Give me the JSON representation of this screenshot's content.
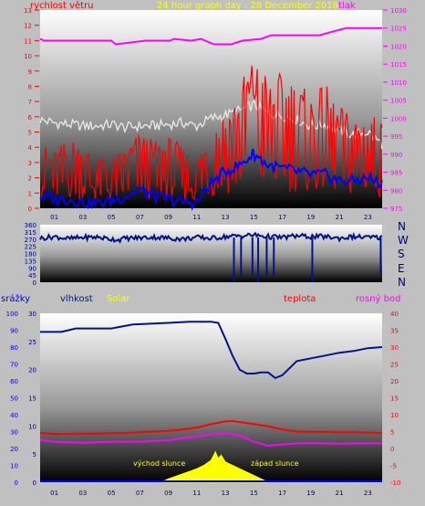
{
  "header": {
    "left_label": "rychlost větru",
    "title": "24 hour graph day : 28 December 2018",
    "right_label": "tlak"
  },
  "colors": {
    "background": "#c0c0c0",
    "wind": "#ff0000",
    "gust": "#e6e6e6",
    "direction": "#00148c",
    "pressure": "#ff00ff",
    "humidity": "#00148c",
    "solar": "#ffff00",
    "temperature": "#ff0000",
    "dewpoint": "#ff00ff",
    "rain": "#0000ff",
    "time_ticks": "#000080"
  },
  "compass": [
    "N",
    "W",
    "S",
    "E",
    "N"
  ],
  "panel3_labels": {
    "rain": "srážky",
    "humidity": "vlhkost",
    "solar": "Solar",
    "temperature": "teplota",
    "dewpoint": "rosný bod",
    "sunrise": "východ slunce",
    "sunset": "západ slunce"
  },
  "chart_data": [
    {
      "type": "line",
      "name": "wind_and_pressure",
      "x_ticks": [
        "01",
        "03",
        "05",
        "07",
        "09",
        "11",
        "13",
        "15",
        "17",
        "19",
        "21",
        "23"
      ],
      "xlim": [
        0,
        24
      ],
      "y_left_ticks": [
        "0",
        "1",
        "2",
        "3",
        "4",
        "5",
        "6",
        "7",
        "8",
        "9",
        "10",
        "11",
        "12",
        "13"
      ],
      "y_left_label": "rychlost větru",
      "ylim_left": [
        0,
        13
      ],
      "y_right_ticks": [
        "975",
        "980",
        "985",
        "990",
        "995",
        "1000",
        "1005",
        "1010",
        "1015",
        "1020",
        "1025",
        "1030"
      ],
      "y_right_label": "tlak",
      "ylim_right": [
        975,
        1030
      ],
      "series": [
        {
          "key": "pressure",
          "axis": "right",
          "x": [
            0,
            0.3,
            5,
            5.3,
            7.4,
            9.1,
            9.4,
            10.6,
            11.3,
            12.2,
            13.4,
            14.2,
            15.5,
            16.2,
            19.6,
            20.5,
            21.5,
            24
          ],
          "y": [
            1022,
            1021.5,
            1021.5,
            1020.5,
            1021.5,
            1021.5,
            1022,
            1021.5,
            1022,
            1020.5,
            1020.5,
            1021.5,
            1022,
            1023,
            1023,
            1024,
            1025,
            1025
          ]
        },
        {
          "key": "gust",
          "axis": "left",
          "x": [
            0,
            1,
            2,
            3,
            4,
            5,
            6,
            7,
            8,
            9,
            10,
            11,
            12,
            13,
            14,
            15,
            16,
            17,
            18,
            19,
            20,
            21,
            22,
            23,
            24
          ],
          "y": [
            5.8,
            5.6,
            5.5,
            5.4,
            5.4,
            5.5,
            5.3,
            5.4,
            5.4,
            5.5,
            5.6,
            5.4,
            5.9,
            6.1,
            6.4,
            6.8,
            6.2,
            6.1,
            5.8,
            5.4,
            5.5,
            5.1,
            4.8,
            5.0,
            4.2
          ]
        },
        {
          "key": "wind",
          "axis": "left",
          "x": [
            0,
            1,
            2,
            3,
            4,
            5,
            6,
            7,
            8,
            9,
            10,
            11,
            12,
            13,
            14,
            15,
            16,
            17,
            18,
            19,
            20,
            21,
            22,
            23,
            24
          ],
          "y": [
            2.6,
            2.2,
            2.8,
            2.5,
            2.0,
            1.9,
            2.4,
            3.0,
            2.6,
            2.8,
            2.4,
            2.0,
            3.2,
            4.0,
            4.6,
            6.8,
            5.0,
            5.3,
            5.0,
            4.4,
            4.8,
            4.0,
            3.6,
            3.8,
            3.4
          ]
        },
        {
          "key": "wind_avg",
          "axis": "left",
          "x": [
            0,
            1,
            2,
            3,
            4,
            5,
            6,
            7,
            8,
            9,
            10,
            11,
            12,
            13,
            14,
            15,
            16,
            17,
            18,
            19,
            20,
            21,
            22,
            23,
            24
          ],
          "y": [
            0.8,
            0.6,
            0.6,
            0.4,
            0.3,
            0.5,
            0.8,
            1.2,
            0.8,
            0.6,
            0.4,
            0.4,
            1.6,
            2.4,
            2.8,
            3.6,
            2.8,
            2.6,
            2.4,
            2.2,
            2.2,
            1.8,
            1.8,
            2.0,
            1.6
          ]
        }
      ]
    },
    {
      "type": "line",
      "name": "wind_direction",
      "xlim": [
        0,
        24
      ],
      "y_ticks": [
        "360",
        "315",
        "270",
        "225",
        "180",
        "135",
        "90",
        "45",
        "0"
      ],
      "ylim": [
        0,
        360
      ],
      "series": [
        {
          "key": "direction",
          "x": [
            0,
            1,
            2,
            3,
            4,
            5,
            5.5,
            6,
            7,
            8,
            9,
            10,
            11,
            12,
            13,
            14,
            15,
            16,
            17,
            18,
            19,
            20,
            21,
            22,
            23,
            24
          ],
          "y": [
            275,
            285,
            272,
            280,
            282,
            270,
            265,
            275,
            278,
            282,
            276,
            270,
            280,
            275,
            285,
            290,
            295,
            285,
            280,
            290,
            285,
            285,
            275,
            285,
            280,
            280
          ]
        }
      ]
    },
    {
      "type": "line",
      "name": "rain_humidity_temperature",
      "x_ticks": [
        "01",
        "03",
        "05",
        "07",
        "09",
        "11",
        "13",
        "15",
        "17",
        "19",
        "21",
        "23"
      ],
      "xlim": [
        0,
        24
      ],
      "y_rain_ticks": [
        "0",
        "10",
        "20",
        "30",
        "40",
        "50",
        "60",
        "70",
        "80",
        "90",
        "100"
      ],
      "ylim_rain": [
        0,
        100
      ],
      "y_rain_label": "srážky",
      "y_humidity_ticks": [
        "0",
        "5",
        "10",
        "15",
        "20",
        "25",
        "30"
      ],
      "ylim_humidity": [
        0,
        30
      ],
      "y_humidity_label": "vlhkost",
      "y_temp_ticks": [
        "-10",
        "-5",
        "0",
        "5",
        "10",
        "15",
        "20",
        "25",
        "30",
        "35",
        "40"
      ],
      "ylim_temp": [
        -10,
        40
      ],
      "y_temp_label": "teplota",
      "series": [
        {
          "key": "humidity",
          "axis": "humidity",
          "x": [
            0,
            1.5,
            2.5,
            5,
            6.5,
            9,
            10.5,
            12,
            12.5,
            13,
            13.5,
            14,
            14.5,
            15,
            15.5,
            16,
            16.5,
            17,
            18,
            19,
            20,
            21,
            22,
            23,
            24
          ],
          "y": [
            26.7,
            26.7,
            27.3,
            27.3,
            28.0,
            28.3,
            28.5,
            28.5,
            28.3,
            25.5,
            22.5,
            20.0,
            19.3,
            19.3,
            19.5,
            19.5,
            18.5,
            19.0,
            21.5,
            22.0,
            22.5,
            23.0,
            23.3,
            23.8,
            24.0
          ]
        },
        {
          "key": "temperature",
          "axis": "temp",
          "x": [
            0,
            1,
            2,
            3,
            4,
            5,
            6,
            7,
            8,
            9,
            10,
            11,
            12,
            13,
            13.5,
            14,
            15,
            16,
            17,
            18,
            19,
            20,
            21,
            22,
            23,
            24
          ],
          "y": [
            4.6,
            4.3,
            4.3,
            4.4,
            4.4,
            4.5,
            4.6,
            4.8,
            5.0,
            5.2,
            5.6,
            6.2,
            7.2,
            8.0,
            8.1,
            7.8,
            7.2,
            6.6,
            5.6,
            5.0,
            4.9,
            4.9,
            4.8,
            4.8,
            4.7,
            4.6
          ]
        },
        {
          "key": "dewpoint",
          "axis": "temp",
          "x": [
            0,
            1,
            2,
            3,
            4,
            5,
            6,
            7,
            8,
            9,
            10,
            11,
            12,
            13,
            14,
            15,
            16,
            17,
            18,
            19,
            20,
            21,
            22,
            23,
            24
          ],
          "y": [
            2.5,
            2.0,
            1.8,
            1.7,
            1.8,
            2.0,
            2.0,
            2.0,
            2.2,
            2.4,
            3.0,
            3.6,
            4.2,
            4.5,
            3.8,
            2.0,
            0.8,
            1.2,
            1.5,
            1.6,
            1.5,
            1.4,
            1.5,
            1.5,
            1.5
          ]
        },
        {
          "key": "solar",
          "axis": "rain",
          "x": [
            8.5,
            9,
            10,
            11,
            11.5,
            12,
            12.3,
            12.5,
            12.7,
            13,
            13.5,
            14,
            14.5,
            15,
            15.5,
            16
          ],
          "y": [
            0,
            2,
            5,
            8,
            10,
            13,
            18,
            14,
            16,
            12,
            10,
            8,
            6,
            4,
            2,
            0
          ]
        },
        {
          "key": "rain",
          "axis": "rain",
          "x": [
            0,
            24
          ],
          "y": [
            0,
            0
          ]
        }
      ]
    }
  ]
}
